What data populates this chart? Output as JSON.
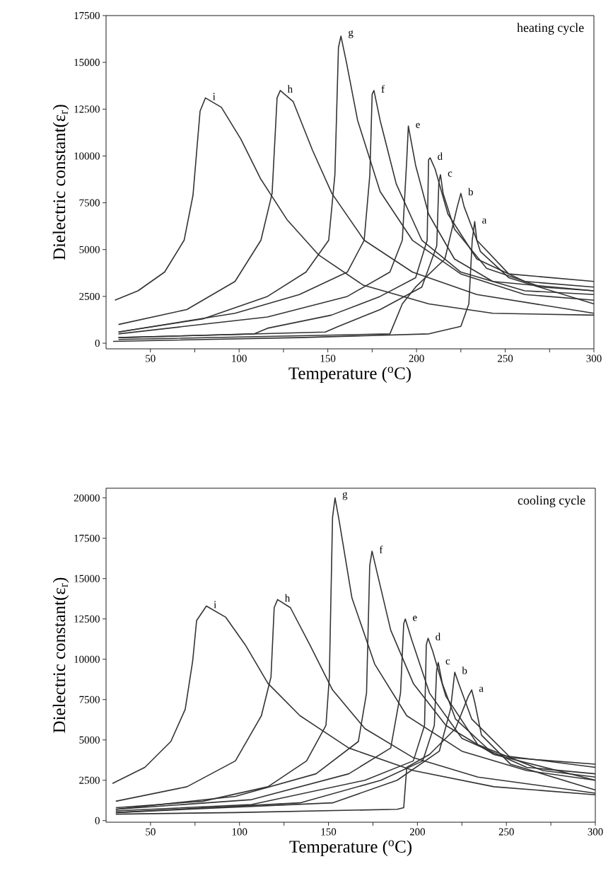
{
  "chart_data": [
    {
      "type": "line",
      "xlabel": "Temperature ($^{o}$C)",
      "ylabel": "Dielectric constant(ε$_{r}$)",
      "annotations": [
        "heating cycle"
      ],
      "xlim": [
        25,
        300
      ],
      "ylim": [
        -300,
        17500
      ],
      "xticks": [
        50,
        {
          "value": 75,
          "label": null
        },
        100,
        {
          "value": 125,
          "label": null
        },
        150,
        {
          "value": 175,
          "label": null
        },
        200,
        {
          "value": 225,
          "label": null
        },
        250,
        {
          "value": 275,
          "label": null
        },
        300
      ],
      "yticks": [
        0,
        2500,
        5000,
        7500,
        10000,
        12500,
        15000,
        17500
      ],
      "series": [
        {
          "name": "a",
          "color": "#333333",
          "x": [
            29,
            134,
            207,
            225,
            229.5,
            231.4,
            232.8,
            234,
            236,
            252,
            300
          ],
          "values": [
            100,
            300,
            500,
            900,
            2100,
            5500,
            6500,
            5500,
            4900,
            3500,
            2100
          ]
        },
        {
          "name": "b",
          "color": "#333333",
          "x": [
            32,
            185,
            192,
            199.5,
            216,
            223,
            225,
            226.8,
            234,
            252,
            300
          ],
          "values": [
            200,
            500,
            2100,
            3000,
            4500,
            7300,
            8000,
            7300,
            5500,
            3700,
            3300
          ]
        },
        {
          "name": "c",
          "color": "#333333",
          "x": [
            32,
            148.6,
            156,
            179.5,
            203,
            211.4,
            212.6,
            213.5,
            215,
            221.4,
            239.5,
            270.5,
            300
          ],
          "values": [
            300,
            600,
            900,
            1800,
            3000,
            5200,
            8600,
            9000,
            8000,
            6100,
            4000,
            3000,
            2800
          ]
        },
        {
          "name": "d",
          "color": "#333333",
          "x": [
            32,
            108.6,
            116,
            152,
            179.5,
            199.5,
            206,
            206.8,
            207.7,
            210.5,
            217.7,
            234,
            261,
            300
          ],
          "values": [
            300,
            500,
            800,
            1500,
            2500,
            3500,
            5500,
            9800,
            9900,
            9300,
            6900,
            4500,
            3300,
            3000
          ]
        },
        {
          "name": "e",
          "color": "#333333",
          "x": [
            32,
            116,
            161,
            185,
            192,
            194.5,
            195.4,
            199.5,
            206.8,
            221.4,
            243,
            300
          ],
          "values": [
            500,
            1400,
            2500,
            3800,
            5500,
            9800,
            11600,
            9500,
            6900,
            4500,
            3300,
            2800
          ]
        },
        {
          "name": "f",
          "color": "#333333",
          "x": [
            32,
            97.7,
            134,
            161,
            170.5,
            173.7,
            175,
            176,
            179.5,
            188.6,
            203,
            225,
            261,
            300
          ],
          "values": [
            600,
            1600,
            2600,
            3800,
            5500,
            9000,
            13300,
            13500,
            11900,
            8500,
            5500,
            3800,
            2800,
            2600
          ]
        },
        {
          "name": "g",
          "color": "#333333",
          "x": [
            32,
            79.5,
            116,
            137.7,
            150.5,
            154,
            156,
            157.4,
            160.5,
            166.8,
            179.5,
            197.7,
            225,
            261,
            300
          ],
          "values": [
            600,
            1300,
            2500,
            3800,
            5500,
            9000,
            15800,
            16400,
            15000,
            11900,
            8100,
            5500,
            3700,
            2600,
            2300
          ]
        },
        {
          "name": "h",
          "color": "#333333",
          "x": [
            32,
            70.5,
            97.7,
            112.3,
            118.6,
            121.4,
            123.2,
            130.5,
            141.4,
            152.3,
            170.5,
            197.7,
            234,
            300
          ],
          "values": [
            1000,
            1800,
            3300,
            5500,
            8000,
            13100,
            13500,
            12900,
            10300,
            8000,
            5500,
            3800,
            2600,
            1600
          ]
        },
        {
          "name": "i",
          "color": "#333333",
          "x": [
            30,
            43,
            58,
            69,
            74,
            78,
            81,
            90,
            101,
            112,
            127,
            145,
            170,
            207,
            243,
            300
          ],
          "values": [
            2300,
            2800,
            3800,
            5500,
            7900,
            12400,
            13100,
            12600,
            10900,
            8800,
            6600,
            4700,
            3100,
            2100,
            1600,
            1500
          ]
        }
      ]
    },
    {
      "type": "line",
      "xlabel": "Temperature ($^{o}$C)",
      "ylabel": "Dielectric constant(ε$_{r}$)",
      "annotations": [
        "cooling cycle"
      ],
      "xlim": [
        25,
        300
      ],
      "ylim": [
        -100,
        20600
      ],
      "xticks": [
        50,
        {
          "value": 75,
          "label": null
        },
        100,
        {
          "value": 125,
          "label": null
        },
        150,
        {
          "value": 175,
          "label": null
        },
        200,
        {
          "value": 225,
          "label": null
        },
        250,
        {
          "value": 275,
          "label": null
        },
        300
      ],
      "yticks": [
        0,
        2500,
        5000,
        7500,
        10000,
        12500,
        15000,
        17500,
        20000
      ],
      "series": [
        {
          "name": "a",
          "color": "#333333",
          "x": [
            30.5,
            97.7,
            188.6,
            192.3,
            194,
            206.8,
            221.4,
            228.6,
            230.5,
            232.3,
            236,
            252.3,
            300
          ],
          "values": [
            400,
            500,
            700,
            800,
            3300,
            4100,
            5700,
            7700,
            8100,
            7300,
            5300,
            3500,
            1900
          ]
        },
        {
          "name": "b",
          "color": "#333333",
          "x": [
            30.5,
            152.3,
            188.6,
            212.3,
            218.6,
            221,
            223.2,
            230.5,
            252.3,
            300
          ],
          "values": [
            500,
            1100,
            2500,
            4300,
            6900,
            9200,
            8500,
            6300,
            3900,
            3500
          ]
        },
        {
          "name": "c",
          "color": "#333333",
          "x": [
            30.5,
            134,
            179.5,
            203,
            209.5,
            210.8,
            211.7,
            214,
            221.4,
            243,
            300
          ],
          "values": [
            500,
            1100,
            2500,
            3700,
            5900,
            9300,
            9800,
            8500,
            6300,
            4100,
            2500
          ]
        },
        {
          "name": "d",
          "color": "#333333",
          "x": [
            30.5,
            106.8,
            170.5,
            197.7,
            204,
            205,
            206,
            208.6,
            216,
            234,
            270.5,
            300
          ],
          "values": [
            600,
            1000,
            2500,
            3700,
            5900,
            10900,
            11300,
            10500,
            7700,
            4700,
            3100,
            2700
          ]
        },
        {
          "name": "e",
          "color": "#333333",
          "x": [
            30.5,
            106.8,
            161.4,
            185,
            190.5,
            192.3,
            193.2,
            196.8,
            206.8,
            225,
            261.4,
            300
          ],
          "values": [
            700,
            1300,
            2900,
            4500,
            7900,
            12200,
            12500,
            11200,
            7900,
            5100,
            3300,
            2900
          ]
        },
        {
          "name": "f",
          "color": "#333333",
          "x": [
            30.5,
            97.7,
            143,
            166.8,
            171.4,
            173.2,
            174.5,
            177.7,
            185,
            197.7,
            216,
            243,
            300
          ],
          "values": [
            700,
            1500,
            2900,
            4900,
            7900,
            15800,
            16700,
            15200,
            11800,
            8500,
            5900,
            4100,
            3300
          ]
        },
        {
          "name": "g",
          "color": "#333333",
          "x": [
            30.5,
            79.5,
            116,
            137.7,
            148.6,
            150.5,
            152.3,
            153.7,
            156,
            163.2,
            176,
            194,
            225,
            261.4,
            300
          ],
          "values": [
            800,
            1200,
            2100,
            3700,
            5900,
            8900,
            18800,
            20000,
            18600,
            13800,
            9700,
            6500,
            4300,
            3100,
            2500
          ]
        },
        {
          "name": "h",
          "color": "#333333",
          "x": [
            30.5,
            70.5,
            97.7,
            112.3,
            117.7,
            119.5,
            121.4,
            128.6,
            139.5,
            152.3,
            170.5,
            197.7,
            234,
            300
          ],
          "values": [
            1200,
            2100,
            3700,
            6500,
            8900,
            13200,
            13700,
            13200,
            10900,
            8100,
            5700,
            3900,
            2700,
            1700
          ]
        },
        {
          "name": "i",
          "color": "#333333",
          "x": [
            28.6,
            46.8,
            61.4,
            69.5,
            73.7,
            75.9,
            81.4,
            92.3,
            103.2,
            116,
            134,
            161.4,
            197.7,
            243,
            300
          ],
          "values": [
            2300,
            3300,
            4900,
            6900,
            9900,
            12400,
            13300,
            12600,
            10900,
            8500,
            6500,
            4500,
            3100,
            2100,
            1600
          ]
        }
      ]
    }
  ]
}
